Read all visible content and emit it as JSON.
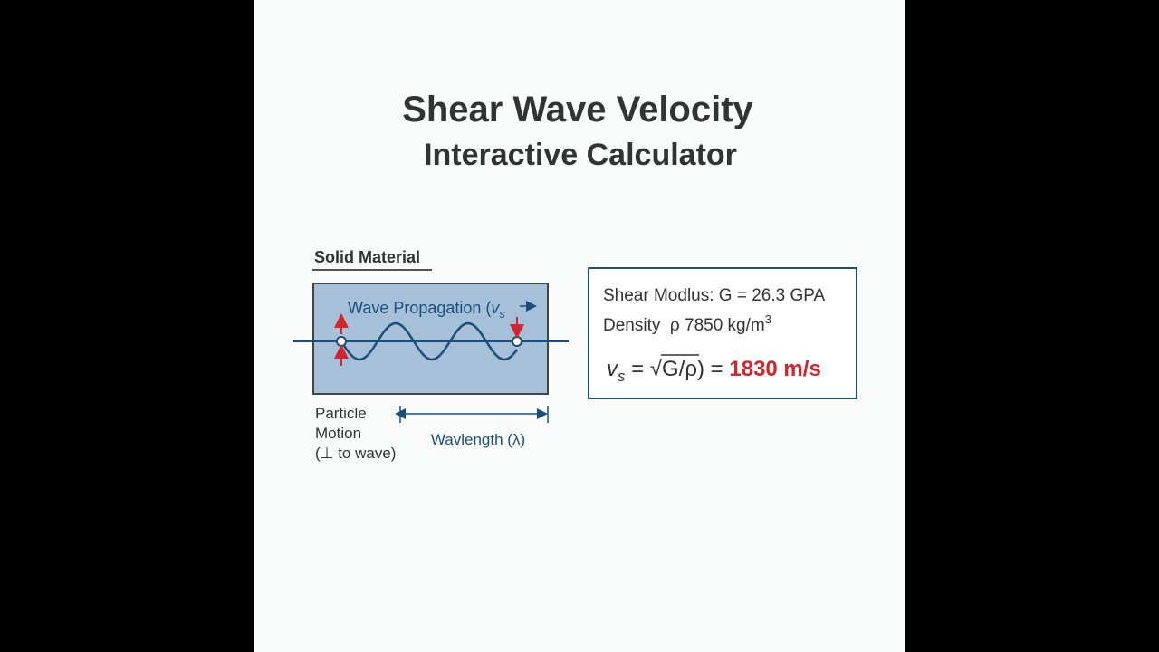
{
  "header": {
    "title": "Shear Wave Velocity",
    "subtitle": "Interactive Calculator"
  },
  "diagram": {
    "label": "Solid Material",
    "wave_label": {
      "text": "Wave Propagation (",
      "symbol": "v",
      "subscript": "s"
    },
    "particle_motion": [
      "Particle",
      "Motion",
      "(⊥ to wave)"
    ],
    "wavelength": "Wavlength (λ)"
  },
  "calculator": {
    "shear_modulus": "Shear Modlus: G = 26.3 GPA",
    "density": {
      "text": "Density  ρ 7850 kg/m",
      "superscript": "3"
    },
    "formula": {
      "symbol": "v",
      "subscript": "s",
      "equals": " = ",
      "radical": "√",
      "radicand": "G/ρ)",
      "equals_2": " = ",
      "result": "1830 m/s"
    }
  }
}
